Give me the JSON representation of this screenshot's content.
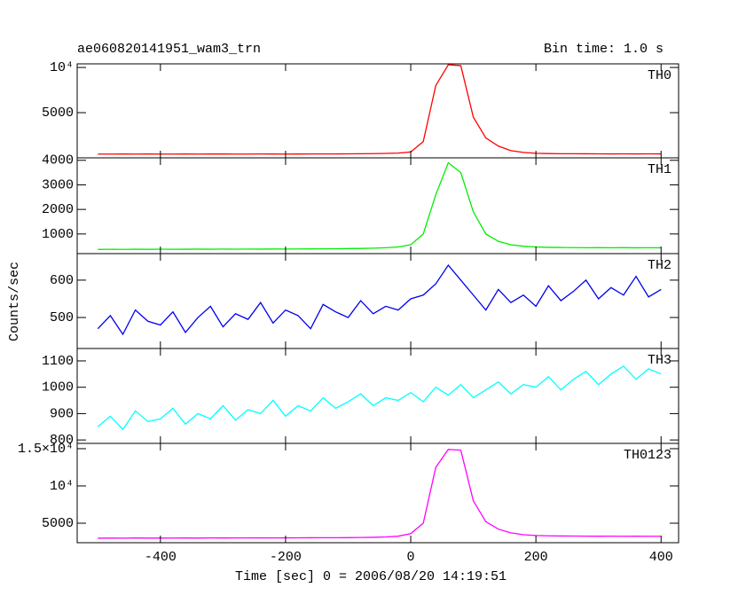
{
  "chart_data": [
    {
      "type": "line",
      "title": "ae060820141951_wam3_trn",
      "subtitle": "Bin time: 1.0 s",
      "x": [
        -500,
        -480,
        -460,
        -440,
        -420,
        -400,
        -380,
        -360,
        -340,
        -320,
        -300,
        -280,
        -260,
        -240,
        -220,
        -200,
        -180,
        -160,
        -140,
        -120,
        -100,
        -80,
        -60,
        -40,
        -20,
        0,
        20,
        40,
        60,
        80,
        100,
        120,
        140,
        160,
        180,
        200,
        220,
        240,
        260,
        280,
        300,
        320,
        340,
        360,
        380,
        400
      ],
      "series": [
        {
          "name": "TH0",
          "color": "#ff0000",
          "values": [
            420,
            415,
            425,
            418,
            422,
            420,
            417,
            424,
            419,
            421,
            423,
            418,
            420,
            426,
            421,
            419,
            425,
            430,
            428,
            432,
            440,
            450,
            465,
            490,
            530,
            650,
            1800,
            8000,
            10300,
            10200,
            4500,
            2200,
            1300,
            800,
            600,
            500,
            470,
            455,
            450,
            445,
            440,
            438,
            442,
            436,
            440,
            437
          ]
        }
      ],
      "xlim": [
        -533,
        428
      ],
      "xticks": [
        -400,
        -200,
        0,
        200,
        400
      ],
      "ylim": [
        0,
        10400
      ],
      "yticks": [
        5000,
        {
          "value": 10000,
          "label": "10⁴"
        }
      ]
    },
    {
      "type": "line",
      "x": [
        -500,
        -480,
        -460,
        -440,
        -420,
        -400,
        -380,
        -360,
        -340,
        -320,
        -300,
        -280,
        -260,
        -240,
        -220,
        -200,
        -180,
        -160,
        -140,
        -120,
        -100,
        -80,
        -60,
        -40,
        -20,
        0,
        20,
        40,
        60,
        80,
        100,
        120,
        140,
        160,
        180,
        200,
        220,
        240,
        260,
        280,
        300,
        320,
        340,
        360,
        380,
        400
      ],
      "series": [
        {
          "name": "TH1",
          "color": "#00ee00",
          "values": [
            370,
            375,
            372,
            378,
            374,
            380,
            376,
            379,
            382,
            378,
            384,
            381,
            385,
            383,
            388,
            386,
            390,
            392,
            395,
            398,
            405,
            410,
            420,
            440,
            470,
            560,
            1000,
            2600,
            3900,
            3500,
            1900,
            1000,
            700,
            560,
            500,
            470,
            455,
            450,
            445,
            440,
            445,
            438,
            442,
            436,
            440,
            437
          ]
        }
      ],
      "xlim": [
        -533,
        428
      ],
      "xticks": [
        -400,
        -200,
        0,
        200,
        400
      ],
      "ylim": [
        200,
        4100
      ],
      "yticks": [
        1000,
        2000,
        3000,
        4000
      ]
    },
    {
      "type": "line",
      "ylabel": "Counts/sec",
      "x": [
        -500,
        -480,
        -460,
        -440,
        -420,
        -400,
        -380,
        -360,
        -340,
        -320,
        -300,
        -280,
        -260,
        -240,
        -220,
        -200,
        -180,
        -160,
        -140,
        -120,
        -100,
        -80,
        -60,
        -40,
        -20,
        0,
        20,
        40,
        60,
        80,
        100,
        120,
        140,
        160,
        180,
        200,
        220,
        240,
        260,
        280,
        300,
        320,
        340,
        360,
        380,
        400
      ],
      "series": [
        {
          "name": "TH2",
          "color": "#0000ee",
          "values": [
            470,
            505,
            455,
            520,
            490,
            480,
            515,
            460,
            500,
            530,
            475,
            510,
            495,
            540,
            485,
            520,
            505,
            470,
            535,
            515,
            500,
            545,
            510,
            530,
            520,
            550,
            560,
            590,
            640,
            600,
            560,
            520,
            575,
            540,
            560,
            530,
            585,
            545,
            570,
            600,
            550,
            580,
            560,
            610,
            555,
            575
          ]
        }
      ],
      "xlim": [
        -533,
        428
      ],
      "xticks": [
        -400,
        -200,
        0,
        200,
        400
      ],
      "ylim": [
        417,
        671
      ],
      "yticks": [
        500,
        600
      ]
    },
    {
      "type": "line",
      "x": [
        -500,
        -480,
        -460,
        -440,
        -420,
        -400,
        -380,
        -360,
        -340,
        -320,
        -300,
        -280,
        -260,
        -240,
        -220,
        -200,
        -180,
        -160,
        -140,
        -120,
        -100,
        -80,
        -60,
        -40,
        -20,
        0,
        20,
        40,
        60,
        80,
        100,
        120,
        140,
        160,
        180,
        200,
        220,
        240,
        260,
        280,
        300,
        320,
        340,
        360,
        380,
        400
      ],
      "series": [
        {
          "name": "TH3",
          "color": "#00ffff",
          "values": [
            850,
            890,
            840,
            910,
            870,
            880,
            920,
            860,
            900,
            880,
            930,
            875,
            915,
            900,
            950,
            890,
            930,
            910,
            960,
            920,
            945,
            975,
            930,
            960,
            950,
            980,
            945,
            1000,
            970,
            1010,
            960,
            990,
            1020,
            975,
            1010,
            1000,
            1040,
            990,
            1030,
            1060,
            1010,
            1050,
            1080,
            1030,
            1070,
            1050
          ]
        }
      ],
      "xlim": [
        -533,
        428
      ],
      "xticks": [
        -400,
        -200,
        0,
        200,
        400
      ],
      "ylim": [
        787,
        1147
      ],
      "yticks": [
        800,
        900,
        1000,
        1100
      ]
    },
    {
      "type": "line",
      "xlabel": "Time [sec] 0 = 2006/08/20 14:19:51",
      "x": [
        -500,
        -480,
        -460,
        -440,
        -420,
        -400,
        -380,
        -360,
        -340,
        -320,
        -300,
        -280,
        -260,
        -240,
        -220,
        -200,
        -180,
        -160,
        -140,
        -120,
        -100,
        -80,
        -60,
        -40,
        -20,
        0,
        20,
        40,
        60,
        80,
        100,
        120,
        140,
        160,
        180,
        200,
        220,
        240,
        260,
        280,
        300,
        320,
        340,
        360,
        380,
        400
      ],
      "series": [
        {
          "name": "TH0123",
          "color": "#ff00ff",
          "values": [
            2980,
            3000,
            2990,
            3010,
            3000,
            2995,
            3005,
            3010,
            3000,
            3015,
            3010,
            3020,
            3015,
            3025,
            3020,
            3030,
            3035,
            3040,
            3045,
            3050,
            3060,
            3080,
            3100,
            3150,
            3250,
            3600,
            5000,
            12500,
            14900,
            14800,
            8000,
            5200,
            4200,
            3700,
            3450,
            3350,
            3300,
            3280,
            3270,
            3260,
            3250,
            3255,
            3245,
            3250,
            3240,
            3245
          ]
        }
      ],
      "xlim": [
        -533,
        428
      ],
      "xticks": [
        -400,
        -200,
        0,
        200,
        400
      ],
      "ylim": [
        2380,
        15710
      ],
      "yticks": [
        5000,
        {
          "value": 10000,
          "label": "10⁴"
        },
        {
          "value": 15000,
          "label": "1.5×10⁴"
        }
      ]
    }
  ]
}
